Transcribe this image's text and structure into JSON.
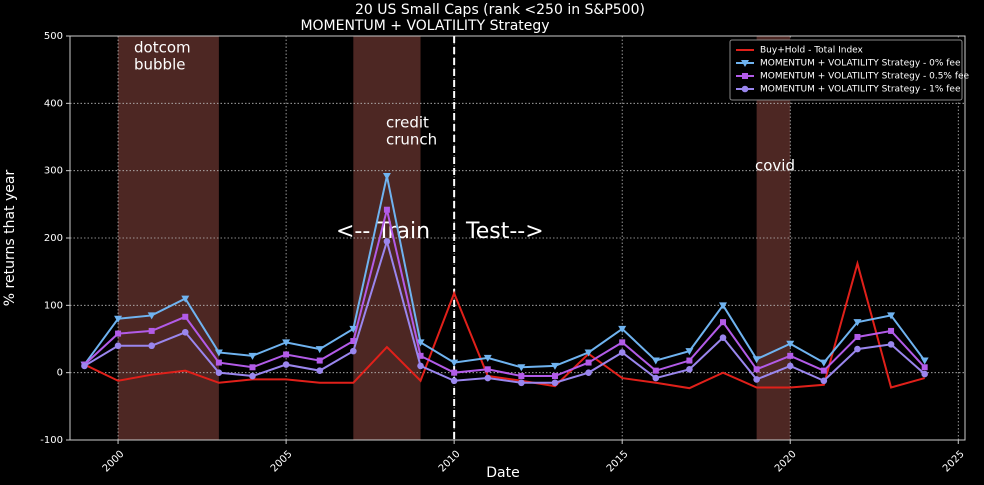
{
  "chart_data": {
    "type": "line",
    "title": "20 US Small Caps (rank <250 in S&P500)",
    "subtitle": "MOMENTUM + VOLATILITY Strategy",
    "x_label": "Date",
    "y_label": "% returns that year",
    "x": [
      1999,
      2000,
      2001,
      2002,
      2003,
      2004,
      2005,
      2006,
      2007,
      2008,
      2009,
      2010,
      2011,
      2012,
      2013,
      2014,
      2015,
      2016,
      2017,
      2018,
      2019,
      2020,
      2021,
      2022,
      2023,
      2024
    ],
    "series": [
      {
        "name": "Buy+Hold - Total Index",
        "color": "#e0201a",
        "values": [
          12,
          -12,
          -3,
          3,
          -15,
          -10,
          -10,
          -15,
          -15,
          38,
          -12,
          118,
          -5,
          -12,
          -20,
          28,
          -8,
          -15,
          -23,
          0,
          -22,
          -22,
          -18,
          162,
          -22,
          -8
        ]
      },
      {
        "name": "MOMENTUM + VOLATILITY Strategy - 0% fee",
        "color": "#6fb3f0",
        "marker": "triangle_down",
        "values": [
          12,
          80,
          85,
          110,
          30,
          25,
          45,
          35,
          65,
          292,
          45,
          15,
          22,
          8,
          10,
          30,
          65,
          18,
          32,
          100,
          20,
          43,
          15,
          75,
          85,
          18
        ]
      },
      {
        "name": "MOMENTUM + VOLATILITY Strategy - 0.5% fee",
        "color": "#b25be8",
        "marker": "square",
        "values": [
          12,
          58,
          62,
          83,
          15,
          8,
          27,
          18,
          47,
          242,
          25,
          0,
          5,
          -5,
          -5,
          15,
          45,
          3,
          18,
          75,
          5,
          25,
          3,
          53,
          62,
          8
        ]
      },
      {
        "name": "MOMENTUM + VOLATILITY Strategy - 1% fee",
        "color": "#9a86ee",
        "marker": "circle",
        "values": [
          10,
          40,
          40,
          60,
          0,
          -5,
          12,
          3,
          32,
          195,
          10,
          -12,
          -8,
          -15,
          -15,
          0,
          30,
          -8,
          5,
          52,
          -10,
          10,
          -12,
          35,
          42,
          -2
        ]
      }
    ],
    "spans": [
      [
        2000,
        2003
      ],
      [
        2007,
        2009
      ],
      [
        2019,
        2020
      ]
    ],
    "span_color": "#4d2723",
    "vline": 2010,
    "annotations": [
      [
        "dotcom",
        "bubble"
      ],
      [
        "credit",
        "crunch"
      ],
      [
        "covid"
      ],
      [
        "<-- Train"
      ],
      [
        "Test-->"
      ]
    ],
    "xlim": [
      1998.57,
      2025.2
    ],
    "ylim": [
      -100,
      500
    ],
    "xticks": [
      2000,
      2005,
      2010,
      2015,
      2020,
      2025
    ],
    "yticks": [
      -100,
      0,
      100,
      200,
      300,
      400,
      500
    ],
    "grid": true,
    "legend": "upper right"
  }
}
